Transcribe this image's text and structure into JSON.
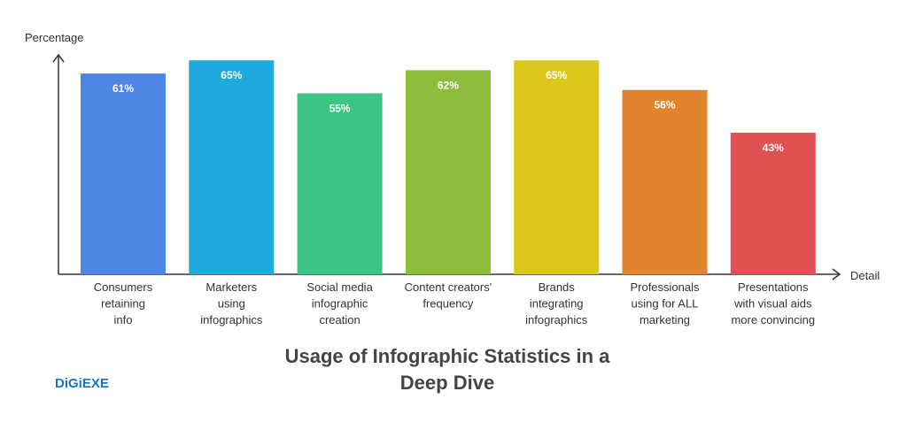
{
  "chart_data": {
    "type": "bar",
    "title": "Usage of Infographic Statistics in a\nDeep Dive",
    "y_label": "Percentage",
    "x_label": "Detail",
    "logo": "DiGiEXE",
    "categories": [
      "Consumers\nretaining\ninfo",
      "Marketers\nusing\ninfographics",
      "Social media\ninfographic\ncreation",
      "Content creators'\nfrequency",
      "Brands\nintegrating\ninfographics",
      "Professionals\nusing for ALL\nmarketing",
      "Presentations\nwith visual aids\nmore convincing"
    ],
    "values": [
      61,
      65,
      55,
      62,
      65,
      56,
      43
    ],
    "value_labels": [
      "61%",
      "65%",
      "55%",
      "62%",
      "65%",
      "56%",
      "43%"
    ],
    "colors": [
      "#4f86e3",
      "#1fa9dc",
      "#3cc585",
      "#8cbd3b",
      "#ddc71b",
      "#e0842e",
      "#e05252"
    ]
  }
}
